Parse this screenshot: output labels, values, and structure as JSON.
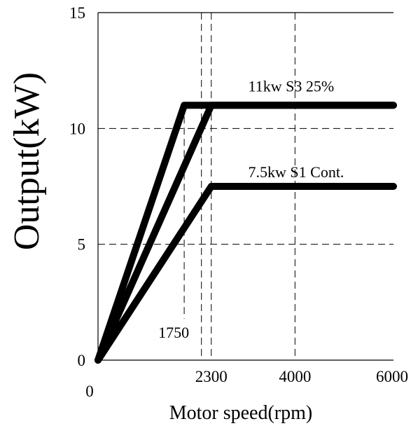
{
  "chart_data": {
    "type": "line",
    "title": "",
    "xlabel": "Motor speed(rpm)",
    "ylabel": "Output(kW)",
    "xlim": [
      0,
      6000
    ],
    "ylim": [
      0,
      15
    ],
    "x_tick_labels": [
      "0",
      "2300",
      "4000",
      "6000"
    ],
    "x_tick_values": [
      0,
      2300,
      4000,
      6000
    ],
    "y_tick_labels": [
      "0",
      "5",
      "10",
      "15"
    ],
    "y_tick_values": [
      0,
      5,
      10,
      15
    ],
    "marker_labels": [
      "1750"
    ],
    "marker_values": [
      1750
    ],
    "grid": true,
    "series": [
      {
        "name": "11kw S3 25%",
        "x": [
          0,
          1750,
          6000
        ],
        "y": [
          0,
          11,
          11
        ]
      },
      {
        "name": "",
        "x": [
          0,
          2300,
          6000
        ],
        "y": [
          0,
          11,
          11
        ]
      },
      {
        "name": "7.5kw S1 Cont.",
        "x": [
          0,
          2300,
          6000
        ],
        "y": [
          0,
          7.5,
          7.5
        ]
      }
    ],
    "annotations": [
      {
        "text": "11kw S3 25%",
        "x": 3050,
        "y": 11.6
      },
      {
        "text": "7.5kw S1 Cont.",
        "x": 3050,
        "y": 7.9
      }
    ]
  }
}
